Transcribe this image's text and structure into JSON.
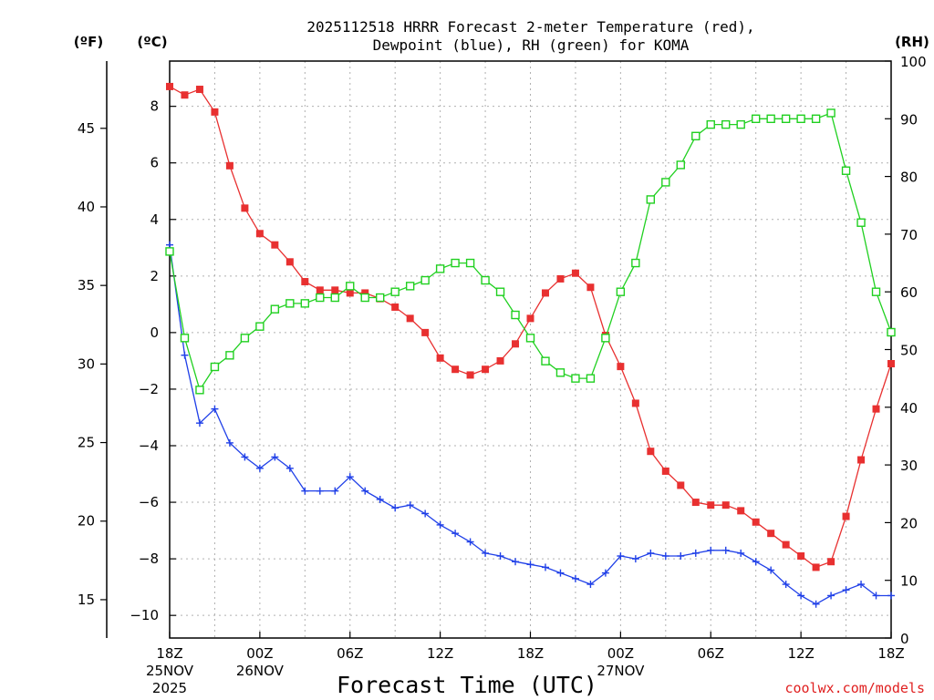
{
  "chart_data": {
    "type": "line",
    "title_line1": "2025112518 HRRR Forecast 2-meter Temperature (red),",
    "title_line2": "Dewpoint (blue), RH (green) for KOMA",
    "xlabel": "Forecast Time (UTC)",
    "credit": "coolwx.com/models",
    "units": {
      "fahrenheit": "(ºF)",
      "celsius": "(ºC)",
      "rh": "(RH)"
    },
    "x_range_hours": [
      0,
      48
    ],
    "celsius_axis": {
      "range": [
        -10.8,
        9.6
      ],
      "ticks": [
        8,
        6,
        4,
        2,
        0,
        -2,
        -4,
        -6,
        -8,
        -10
      ],
      "labels": [
        "8",
        "6",
        "4",
        "2",
        "0",
        "−2",
        "−4",
        "−6",
        "−8",
        "−10"
      ]
    },
    "fahrenheit_axis": {
      "ticks": [
        45,
        40,
        35,
        30,
        25,
        20,
        15
      ],
      "labels": [
        "45",
        "40",
        "35",
        "30",
        "25",
        "20",
        "15"
      ]
    },
    "rh_axis": {
      "range": [
        0,
        100
      ],
      "ticks": [
        100,
        90,
        80,
        70,
        60,
        50,
        40,
        30,
        20,
        10,
        0
      ],
      "labels": [
        "100",
        "90",
        "80",
        "70",
        "60",
        "50",
        "40",
        "30",
        "20",
        "10",
        "0"
      ]
    },
    "x_ticks": [
      {
        "hour": 0,
        "label": "18Z",
        "sub1": "25NOV",
        "sub2": "2025"
      },
      {
        "hour": 6,
        "label": "00Z",
        "sub1": "26NOV",
        "sub2": ""
      },
      {
        "hour": 12,
        "label": "06Z",
        "sub1": "",
        "sub2": ""
      },
      {
        "hour": 18,
        "label": "12Z",
        "sub1": "",
        "sub2": ""
      },
      {
        "hour": 24,
        "label": "18Z",
        "sub1": "",
        "sub2": ""
      },
      {
        "hour": 30,
        "label": "00Z",
        "sub1": "27NOV",
        "sub2": ""
      },
      {
        "hour": 36,
        "label": "06Z",
        "sub1": "",
        "sub2": ""
      },
      {
        "hour": 42,
        "label": "12Z",
        "sub1": "",
        "sub2": ""
      },
      {
        "hour": 48,
        "label": "18Z",
        "sub1": "",
        "sub2": ""
      }
    ],
    "hours": [
      0,
      1,
      2,
      3,
      4,
      5,
      6,
      7,
      8,
      9,
      10,
      11,
      12,
      13,
      14,
      15,
      16,
      17,
      18,
      19,
      20,
      21,
      22,
      23,
      24,
      25,
      26,
      27,
      28,
      29,
      30,
      31,
      32,
      33,
      34,
      35,
      36,
      37,
      38,
      39,
      40,
      41,
      42,
      43,
      44,
      45,
      46,
      47,
      48
    ],
    "series": [
      {
        "name": "2-meter Temperature",
        "axis": "celsius",
        "color": "#e83030",
        "marker": "filled-square",
        "values": [
          8.7,
          8.4,
          8.6,
          7.8,
          5.9,
          4.4,
          3.5,
          3.1,
          2.5,
          1.8,
          1.5,
          1.5,
          1.4,
          1.4,
          1.2,
          0.9,
          0.5,
          0.0,
          -0.9,
          -1.3,
          -1.5,
          -1.3,
          -1.0,
          -0.4,
          0.5,
          1.4,
          1.9,
          2.1,
          1.6,
          -0.1,
          -1.2,
          -2.5,
          -4.2,
          -4.9,
          -5.4,
          -6.0,
          -6.1,
          -6.1,
          -6.3,
          -6.7,
          -7.1,
          -7.5,
          -7.9,
          -8.3,
          -8.1,
          -6.5,
          -4.5,
          -2.7,
          -1.1
        ]
      },
      {
        "name": "Dewpoint",
        "axis": "celsius",
        "color": "#2040e8",
        "marker": "plus",
        "values": [
          3.1,
          -0.8,
          -3.2,
          -2.7,
          -3.9,
          -4.4,
          -4.8,
          -4.4,
          -4.8,
          -5.6,
          -5.6,
          -5.6,
          -5.1,
          -5.6,
          -5.9,
          -6.2,
          -6.1,
          -6.4,
          -6.8,
          -7.1,
          -7.4,
          -7.8,
          -7.9,
          -8.1,
          -8.2,
          -8.3,
          -8.5,
          -8.7,
          -8.9,
          -8.5,
          -7.9,
          -8.0,
          -7.8,
          -7.9,
          -7.9,
          -7.8,
          -7.7,
          -7.7,
          -7.8,
          -8.1,
          -8.4,
          -8.9,
          -9.3,
          -9.6,
          -9.3,
          -9.1,
          -8.9,
          -9.3,
          -9.3
        ]
      },
      {
        "name": "Relative Humidity",
        "axis": "rh",
        "color": "#20d020",
        "marker": "open-square",
        "values": [
          67,
          52,
          43,
          47,
          49,
          52,
          54,
          57,
          58,
          58,
          59,
          59,
          61,
          59,
          59,
          60,
          61,
          62,
          64,
          65,
          65,
          62,
          60,
          56,
          52,
          48,
          46,
          45,
          45,
          52,
          60,
          65,
          76,
          79,
          82,
          87,
          89,
          89,
          89,
          90,
          90,
          90,
          90,
          90,
          91,
          81,
          72,
          60,
          53
        ]
      }
    ]
  }
}
